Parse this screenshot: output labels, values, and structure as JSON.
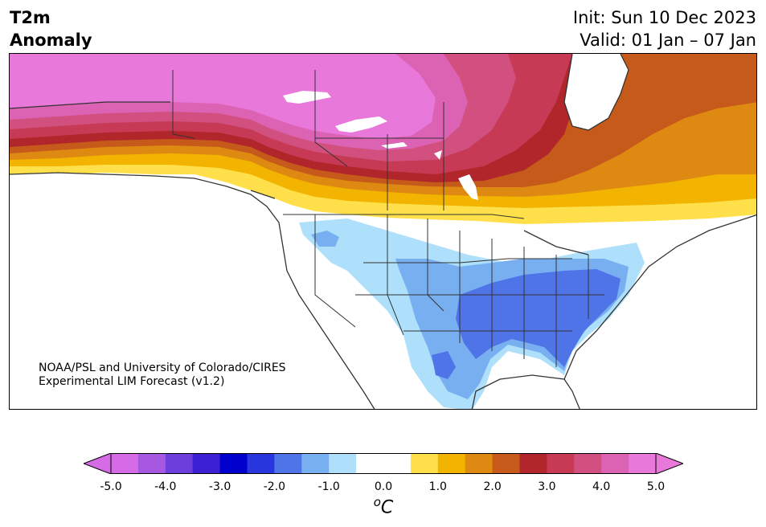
{
  "title": {
    "left_line1": "T2m",
    "left_line2": "Anomaly",
    "init": "Init: Sun 10 Dec 2023",
    "valid": "Valid: 01 Jan – 07 Jan"
  },
  "credit": {
    "line1": "NOAA/PSL and University of Colorado/CIRES",
    "line2": "Experimental LIM Forecast (v1.2)"
  },
  "colorbar": {
    "unit": "°C",
    "unit_sup": "o",
    "unit_main": "C",
    "bins": [
      "#d66be6",
      "#a659e0",
      "#6c3edb",
      "#3b1fd3",
      "#0000cd",
      "#2737dd",
      "#4f74e8",
      "#78aff0",
      "#aee0fb",
      "#ffffff",
      "#ffffff",
      "#ffe04a",
      "#f2b400",
      "#de8a12",
      "#c65a1a",
      "#b0262a",
      "#c63a55",
      "#d1507f",
      "#dc62b4",
      "#e878da"
    ],
    "left_arrow_color": "#d66be6",
    "right_arrow_color": "#e878da",
    "ticks": [
      "-5.0",
      "-4.0",
      "-3.0",
      "-2.0",
      "-1.0",
      "0.0",
      "1.0",
      "2.0",
      "3.0",
      "4.0",
      "5.0"
    ]
  },
  "map": {
    "colors": {
      "magenta": "#e878da",
      "pink": "#dc62b4",
      "rose": "#d1507f",
      "crimson": "#c63a55",
      "darkred": "#b0262a",
      "rust": "#c65a1a",
      "orange": "#de8a12",
      "gold": "#f2b400",
      "yellow": "#ffe04a",
      "paleblue": "#aee0fb",
      "lightblue": "#78aff0",
      "blue": "#4f74e8",
      "lake": "#ffffff",
      "coast": "#333333"
    }
  }
}
